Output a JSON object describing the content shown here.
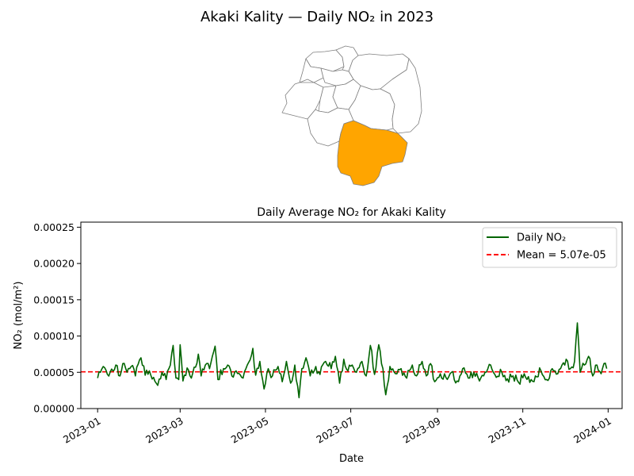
{
  "figure": {
    "suptitle": "Akaki Kality — Daily NO₂ in 2023"
  },
  "map": {
    "highlight_color": "#ffa500",
    "region_edge_color": "#7f7f7f",
    "highlighted_region": "Akaki Kality"
  },
  "chart_data": {
    "type": "line",
    "title": "Daily Average NO₂ for Akaki Kality",
    "xlabel": "Date",
    "ylabel": "NO₂ (mol/m²)",
    "x_range": [
      "2022-12-20",
      "2024-01-11"
    ],
    "ylim": [
      0,
      0.000257
    ],
    "x_ticks": [
      "2023-01",
      "2023-03",
      "2023-05",
      "2023-07",
      "2023-09",
      "2023-11",
      "2024-01"
    ],
    "y_ticks": [
      "0.00000",
      "0.00005",
      "0.00010",
      "0.00015",
      "0.00020",
      "0.00025"
    ],
    "grid": false,
    "legend_position": "top-right",
    "series": [
      {
        "name": "Daily NO₂",
        "color": "#006400",
        "start_date": "2023-01-01",
        "end_date": "2023-12-31",
        "keypoints": [
          [
            "2023-01-01",
            4.2e-05
          ],
          [
            "2023-01-03",
            5e-05
          ],
          [
            "2023-01-05",
            5.8e-05
          ],
          [
            "2023-01-08",
            4.7e-05
          ],
          [
            "2023-01-12",
            5.2e-05
          ],
          [
            "2023-01-14",
            6e-05
          ],
          [
            "2023-01-17",
            4.5e-05
          ],
          [
            "2023-01-19",
            6.2e-05
          ],
          [
            "2023-01-22",
            5e-05
          ],
          [
            "2023-01-25",
            5.8e-05
          ],
          [
            "2023-01-28",
            4.5e-05
          ],
          [
            "2023-02-01",
            7e-05
          ],
          [
            "2023-02-04",
            4.6e-05
          ],
          [
            "2023-02-07",
            5.2e-05
          ],
          [
            "2023-02-10",
            4.3e-05
          ],
          [
            "2023-02-13",
            3.2e-05
          ],
          [
            "2023-02-16",
            5e-05
          ],
          [
            "2023-02-19",
            4e-05
          ],
          [
            "2023-02-22",
            6e-05
          ],
          [
            "2023-02-24",
            8.7e-05
          ],
          [
            "2023-02-26",
            4.2e-05
          ],
          [
            "2023-02-28",
            4e-05
          ],
          [
            "2023-03-01",
            8.8e-05
          ],
          [
            "2023-03-03",
            3.8e-05
          ],
          [
            "2023-03-06",
            5.6e-05
          ],
          [
            "2023-03-09",
            4.2e-05
          ],
          [
            "2023-03-12",
            5.7e-05
          ],
          [
            "2023-03-14",
            7.5e-05
          ],
          [
            "2023-03-16",
            4.5e-05
          ],
          [
            "2023-03-19",
            6e-05
          ],
          [
            "2023-03-22",
            5.5e-05
          ],
          [
            "2023-03-26",
            8.6e-05
          ],
          [
            "2023-03-28",
            4e-05
          ],
          [
            "2023-04-01",
            5.5e-05
          ],
          [
            "2023-04-04",
            6e-05
          ],
          [
            "2023-04-07",
            4.5e-05
          ],
          [
            "2023-04-10",
            5.2e-05
          ],
          [
            "2023-04-14",
            4.3e-05
          ],
          [
            "2023-04-18",
            6e-05
          ],
          [
            "2023-04-22",
            8.3e-05
          ],
          [
            "2023-04-24",
            4.6e-05
          ],
          [
            "2023-04-27",
            6.5e-05
          ],
          [
            "2023-04-30",
            2.7e-05
          ],
          [
            "2023-05-03",
            5.5e-05
          ],
          [
            "2023-05-06",
            4.5e-05
          ],
          [
            "2023-05-10",
            5.8e-05
          ],
          [
            "2023-05-13",
            3.7e-05
          ],
          [
            "2023-05-16",
            6.5e-05
          ],
          [
            "2023-05-19",
            3.5e-05
          ],
          [
            "2023-05-22",
            6e-05
          ],
          [
            "2023-05-25",
            1.5e-05
          ],
          [
            "2023-05-27",
            5.5e-05
          ],
          [
            "2023-05-30",
            7e-05
          ],
          [
            "2023-06-02",
            4.5e-05
          ],
          [
            "2023-06-06",
            5.8e-05
          ],
          [
            "2023-06-09",
            4.7e-05
          ],
          [
            "2023-06-13",
            6.5e-05
          ],
          [
            "2023-06-17",
            5.5e-05
          ],
          [
            "2023-06-20",
            7.2e-05
          ],
          [
            "2023-06-23",
            3.5e-05
          ],
          [
            "2023-06-26",
            6.8e-05
          ],
          [
            "2023-06-29",
            5.2e-05
          ],
          [
            "2023-07-02",
            6e-05
          ],
          [
            "2023-07-05",
            5e-05
          ],
          [
            "2023-07-09",
            6.5e-05
          ],
          [
            "2023-07-12",
            4.5e-05
          ],
          [
            "2023-07-15",
            8.7e-05
          ],
          [
            "2023-07-18",
            4.7e-05
          ],
          [
            "2023-07-21",
            8.8e-05
          ],
          [
            "2023-07-24",
            5.5e-05
          ],
          [
            "2023-07-26",
            1.9e-05
          ],
          [
            "2023-07-29",
            5.8e-05
          ],
          [
            "2023-08-02",
            4.8e-05
          ],
          [
            "2023-08-06",
            5.5e-05
          ],
          [
            "2023-08-10",
            4.2e-05
          ],
          [
            "2023-08-14",
            6e-05
          ],
          [
            "2023-08-17",
            4.5e-05
          ],
          [
            "2023-08-21",
            6.5e-05
          ],
          [
            "2023-08-24",
            4.5e-05
          ],
          [
            "2023-08-27",
            6.2e-05
          ],
          [
            "2023-08-30",
            3.7e-05
          ],
          [
            "2023-09-03",
            4.8e-05
          ],
          [
            "2023-09-07",
            4.3e-05
          ],
          [
            "2023-09-11",
            5e-05
          ],
          [
            "2023-09-15",
            3.8e-05
          ],
          [
            "2023-09-19",
            5.5e-05
          ],
          [
            "2023-09-23",
            4.2e-05
          ],
          [
            "2023-09-27",
            5e-05
          ],
          [
            "2023-10-01",
            3.8e-05
          ],
          [
            "2023-10-05",
            5e-05
          ],
          [
            "2023-10-09",
            6e-05
          ],
          [
            "2023-10-13",
            4.3e-05
          ],
          [
            "2023-10-17",
            5e-05
          ],
          [
            "2023-10-21",
            4.1e-05
          ],
          [
            "2023-10-25",
            4.5e-05
          ],
          [
            "2023-10-29",
            3.6e-05
          ],
          [
            "2023-11-02",
            4.8e-05
          ],
          [
            "2023-11-06",
            3.6e-05
          ],
          [
            "2023-11-10",
            4.5e-05
          ],
          [
            "2023-11-14",
            5.2e-05
          ],
          [
            "2023-11-18",
            4e-05
          ],
          [
            "2023-11-22",
            5.5e-05
          ],
          [
            "2023-11-26",
            4.8e-05
          ],
          [
            "2023-11-29",
            6e-05
          ],
          [
            "2023-12-02",
            6.8e-05
          ],
          [
            "2023-12-05",
            5.5e-05
          ],
          [
            "2023-12-08",
            6.5e-05
          ],
          [
            "2023-12-10",
            0.000118
          ],
          [
            "2023-12-12",
            5e-05
          ],
          [
            "2023-12-15",
            6e-05
          ],
          [
            "2023-12-18",
            7.2e-05
          ],
          [
            "2023-12-21",
            4.5e-05
          ],
          [
            "2023-12-24",
            6e-05
          ],
          [
            "2023-12-27",
            4.8e-05
          ],
          [
            "2023-12-29",
            6.2e-05
          ],
          [
            "2023-12-31",
            5.5e-05
          ]
        ]
      },
      {
        "name": "Mean = 5.07e-05",
        "color": "#ff0000",
        "style": "dashed",
        "value": 5.07e-05
      }
    ]
  }
}
